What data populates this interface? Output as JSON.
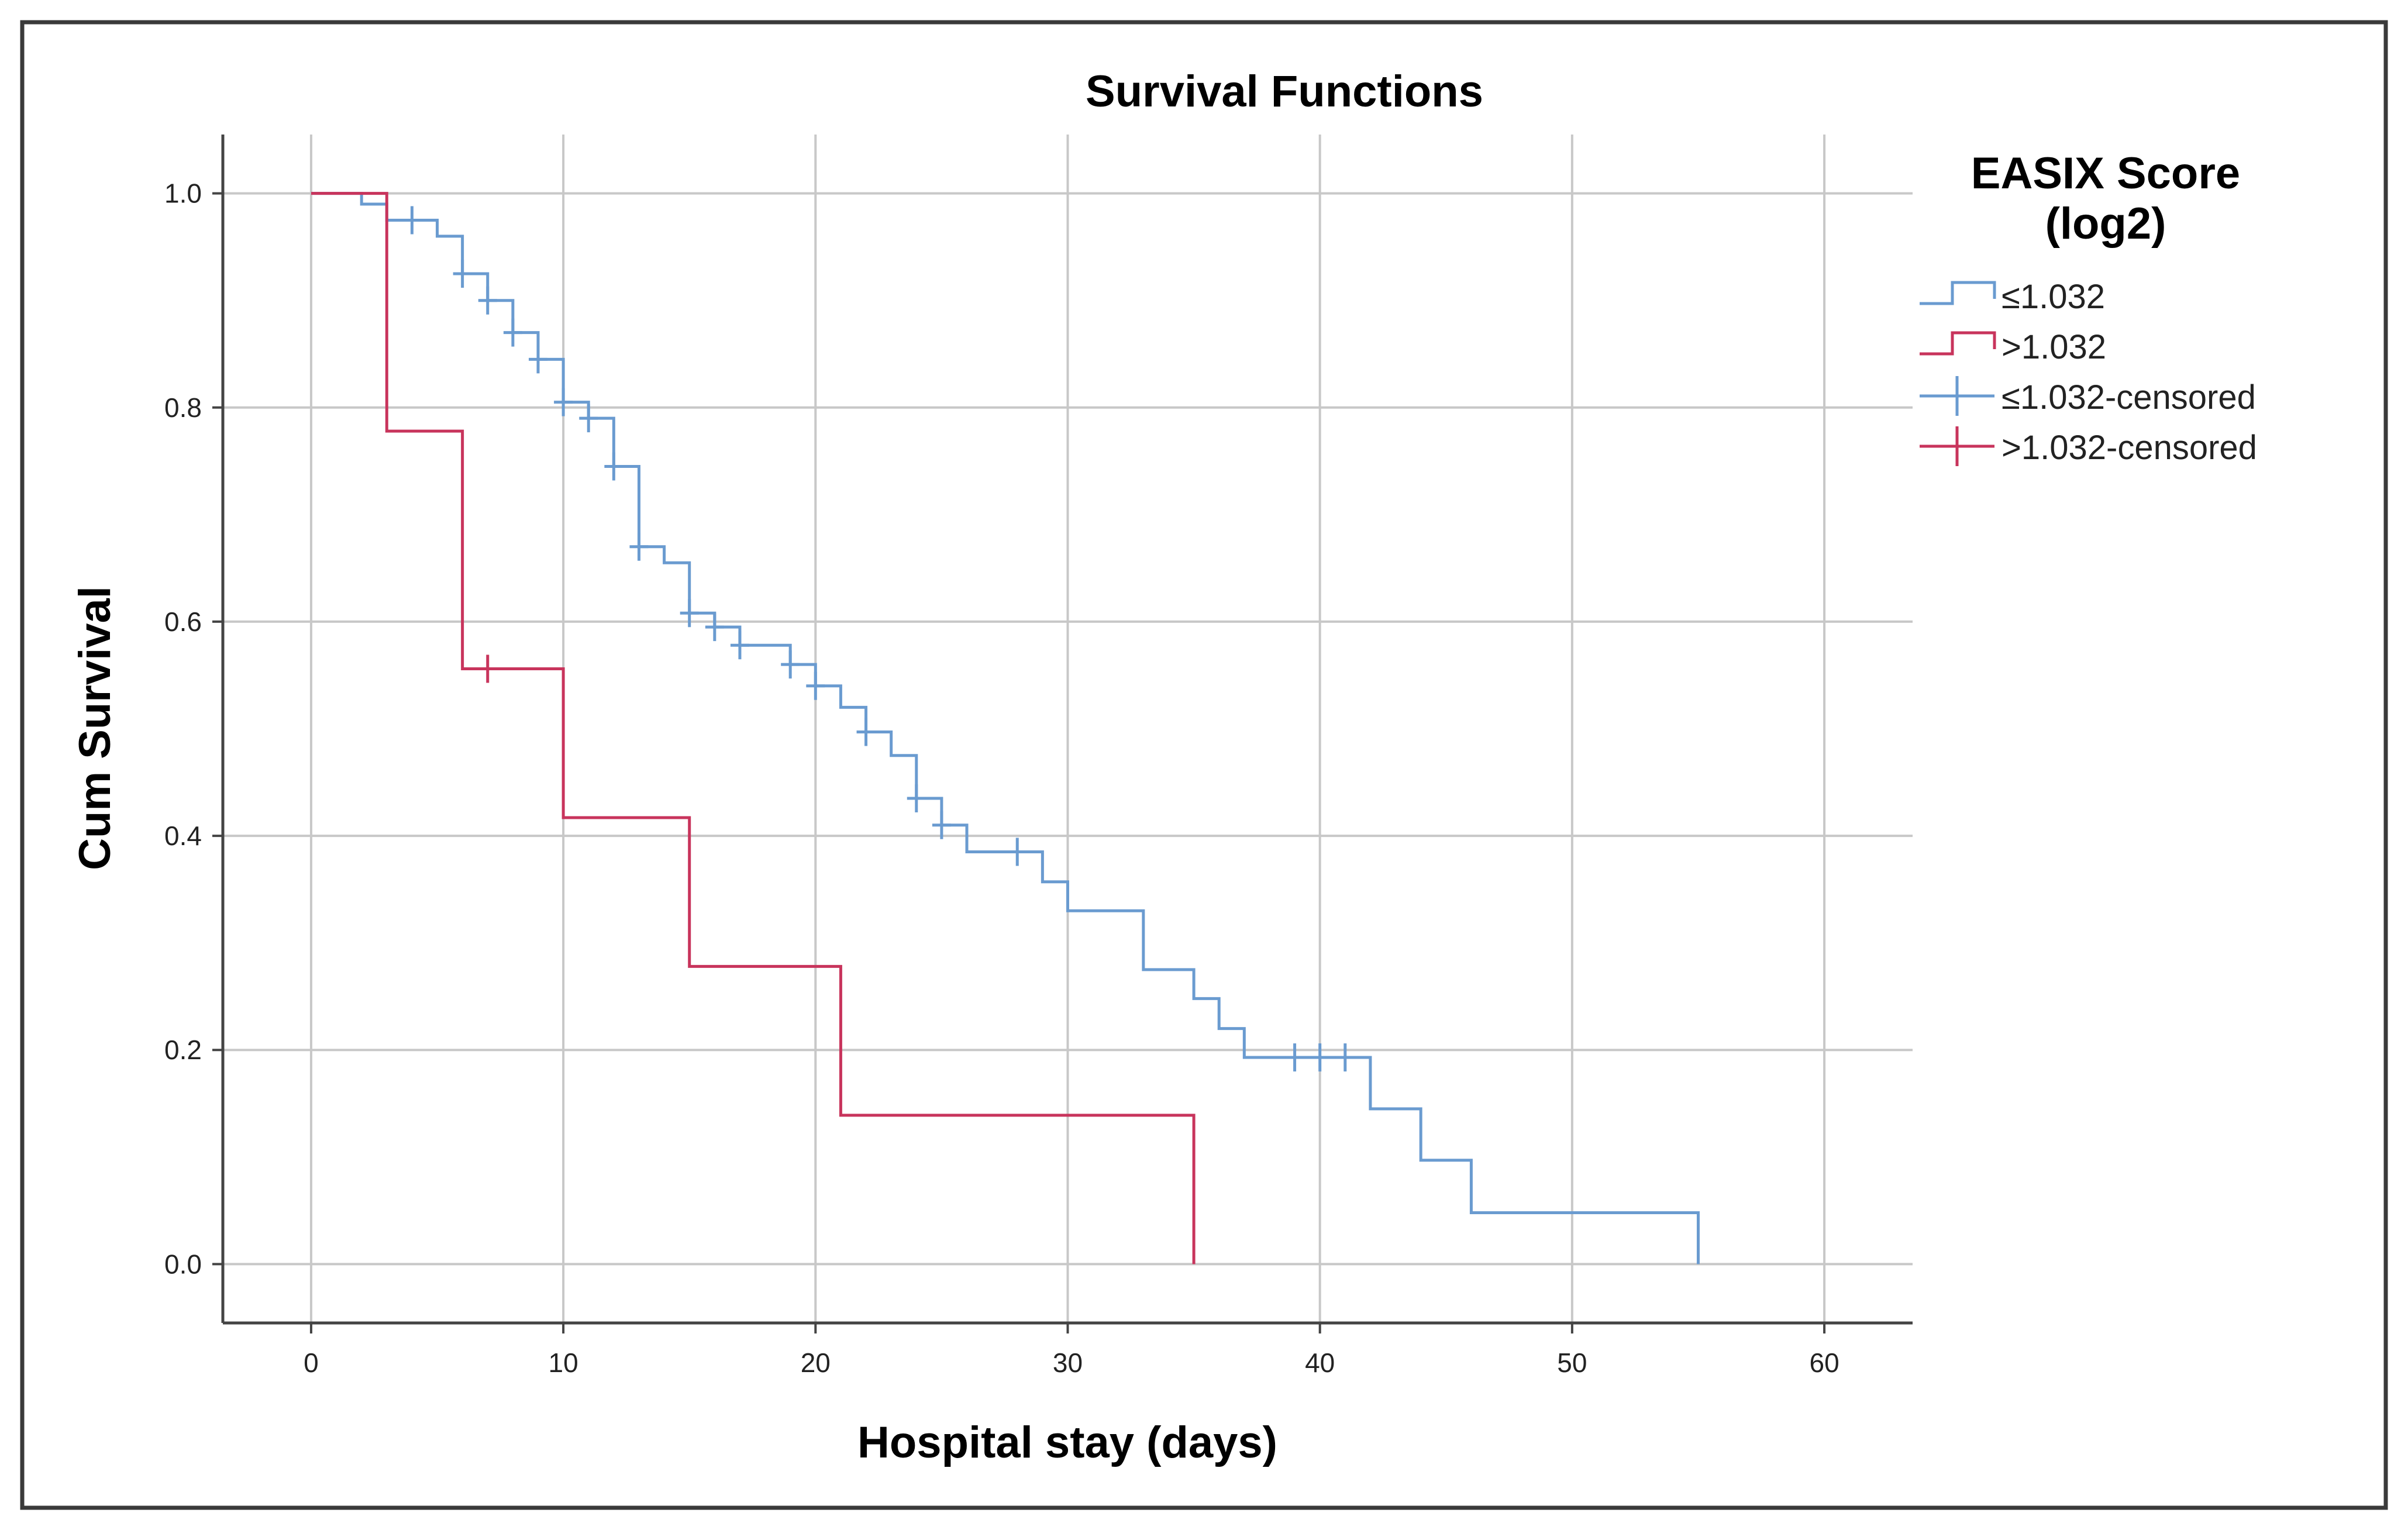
{
  "chart_data": {
    "type": "line",
    "subtype": "kaplan-meier-step",
    "title": "Survival Functions",
    "xlabel": "Hospital stay (days)",
    "ylabel": "Cum Survival",
    "xlim": [
      -3.5,
      63.5
    ],
    "ylim": [
      -0.055,
      1.055
    ],
    "xticks": [
      0,
      10,
      20,
      30,
      40,
      50,
      60
    ],
    "xtick_labels": [
      "0",
      "10",
      "20",
      "30",
      "40",
      "50",
      "60"
    ],
    "yticks": [
      0.0,
      0.2,
      0.4,
      0.6,
      0.8,
      1.0
    ],
    "ytick_labels": [
      "0.0",
      "0.2",
      "0.4",
      "0.6",
      "0.8",
      "1.0"
    ],
    "grid": true,
    "legend": {
      "title_line1": "EASIX Score",
      "title_line2": "(log2)",
      "position": "right",
      "entries": [
        {
          "label": "≤1.032",
          "kind": "step",
          "color": "#6a9bd0"
        },
        {
          "label": ">1.032",
          "kind": "step",
          "color": "#c8345c"
        },
        {
          "label": "≤1.032-censored",
          "kind": "censor",
          "color": "#6a9bd0"
        },
        {
          "label": ">1.032-censored",
          "kind": "censor",
          "color": "#c8345c"
        }
      ]
    },
    "series": [
      {
        "name": "≤1.032",
        "color": "#6a9bd0",
        "x": [
          0,
          2,
          3,
          5,
          6,
          7,
          8,
          9,
          10,
          11,
          12,
          13,
          14,
          15,
          16,
          17,
          19,
          20,
          21,
          22,
          23,
          24,
          25,
          26,
          29,
          30,
          33,
          35,
          36,
          37,
          42,
          44,
          46,
          55
        ],
        "y": [
          1.0,
          0.99,
          0.975,
          0.96,
          0.925,
          0.9,
          0.87,
          0.845,
          0.805,
          0.79,
          0.745,
          0.67,
          0.655,
          0.608,
          0.595,
          0.578,
          0.56,
          0.54,
          0.52,
          0.497,
          0.475,
          0.435,
          0.41,
          0.385,
          0.357,
          0.33,
          0.275,
          0.248,
          0.22,
          0.193,
          0.145,
          0.097,
          0.048,
          0.0
        ],
        "censored": [
          {
            "x": 4,
            "y": 0.975
          },
          {
            "x": 6,
            "y": 0.925
          },
          {
            "x": 7,
            "y": 0.9
          },
          {
            "x": 8,
            "y": 0.87
          },
          {
            "x": 9,
            "y": 0.845
          },
          {
            "x": 10,
            "y": 0.805
          },
          {
            "x": 11,
            "y": 0.79
          },
          {
            "x": 12,
            "y": 0.745
          },
          {
            "x": 13,
            "y": 0.67
          },
          {
            "x": 15,
            "y": 0.608
          },
          {
            "x": 16,
            "y": 0.595
          },
          {
            "x": 17,
            "y": 0.578
          },
          {
            "x": 19,
            "y": 0.56
          },
          {
            "x": 20,
            "y": 0.54
          },
          {
            "x": 22,
            "y": 0.497
          },
          {
            "x": 24,
            "y": 0.435
          },
          {
            "x": 25,
            "y": 0.41
          },
          {
            "x": 28,
            "y": 0.385
          },
          {
            "x": 39,
            "y": 0.193
          },
          {
            "x": 40,
            "y": 0.193
          },
          {
            "x": 41,
            "y": 0.193
          }
        ]
      },
      {
        "name": ">1.032",
        "color": "#c8345c",
        "x": [
          0,
          3,
          6,
          10,
          15,
          21,
          35
        ],
        "y": [
          1.0,
          0.778,
          0.556,
          0.417,
          0.278,
          0.139,
          0.0
        ],
        "censored": [
          {
            "x": 7,
            "y": 0.556
          }
        ]
      }
    ]
  }
}
